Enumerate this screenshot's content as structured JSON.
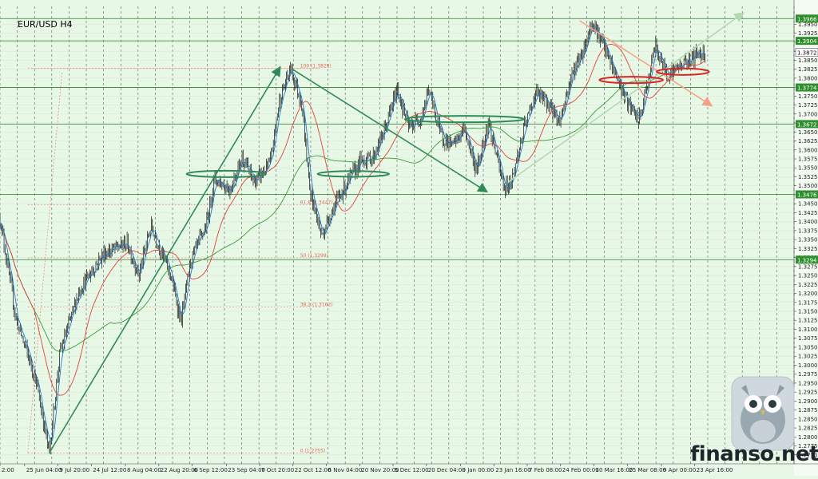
{
  "chart_data": {
    "type": "candlestick",
    "title": "EUR/USD H4",
    "symbol": "EUR/USD",
    "timeframe": "H4",
    "ylim": [
      1.2725,
      1.4
    ],
    "y_ticks": [
      "1.3950",
      "1.3925",
      "1.3900",
      "1.3875",
      "1.3850",
      "1.3825",
      "1.3800",
      "1.3775",
      "1.3750",
      "1.3725",
      "1.3700",
      "1.3675",
      "1.3650",
      "1.3625",
      "1.3600",
      "1.3575",
      "1.3550",
      "1.3525",
      "1.3500",
      "1.3475",
      "1.3450",
      "1.3425",
      "1.3400",
      "1.3375",
      "1.3350",
      "1.3325",
      "1.3300",
      "1.3275",
      "1.3250",
      "1.3225",
      "1.3200",
      "1.3175",
      "1.3150",
      "1.3125",
      "1.3100",
      "1.3075",
      "1.3050",
      "1.3025",
      "1.3000",
      "1.2975",
      "1.2950",
      "1.2925",
      "1.2900",
      "1.2875",
      "1.2850",
      "1.2825",
      "1.2800",
      "1.2775",
      "1.2750"
    ],
    "x_labels": [
      {
        "label": "2:00",
        "t": 0.0
      },
      {
        "label": "25 Jun 04:00",
        "t": 0.031
      },
      {
        "label": "9 Jul 20:00",
        "t": 0.073
      },
      {
        "label": "24 Jul 12:00",
        "t": 0.115
      },
      {
        "label": "8 Aug 04:00",
        "t": 0.158
      },
      {
        "label": "22 Aug 20:00",
        "t": 0.2
      },
      {
        "label": "6 Sep 12:00",
        "t": 0.242
      },
      {
        "label": "23 Sep 04:00",
        "t": 0.285
      },
      {
        "label": "7 Oct 20:00",
        "t": 0.327
      },
      {
        "label": "22 Oct 12:00",
        "t": 0.369
      },
      {
        "label": "6 Nov 04:00",
        "t": 0.411
      },
      {
        "label": "20 Nov 20:00",
        "t": 0.453
      },
      {
        "label": "5 Dec 12:00",
        "t": 0.495
      },
      {
        "label": "20 Dec 04:00",
        "t": 0.537
      },
      {
        "label": "9 Jan 00:00",
        "t": 0.58
      },
      {
        "label": "23 Jan 16:00",
        "t": 0.622
      },
      {
        "label": "7 Feb 08:00",
        "t": 0.664
      },
      {
        "label": "24 Feb 00:00",
        "t": 0.706
      },
      {
        "label": "10 Mar 16:00",
        "t": 0.748
      },
      {
        "label": "25 Mar 08:00",
        "t": 0.79
      },
      {
        "label": "9 Apr 00:00",
        "t": 0.833
      },
      {
        "label": "23 Apr 16:00",
        "t": 0.875
      }
    ],
    "horizontal_levels": [
      {
        "label": "1.3966",
        "value": 1.3966
      },
      {
        "label": "1.3904",
        "value": 1.3904
      },
      {
        "label": "1.3774",
        "value": 1.3774
      },
      {
        "label": "1.3672",
        "value": 1.3672
      },
      {
        "label": "1.3476",
        "value": 1.3476
      },
      {
        "label": "1.3294",
        "value": 1.3294
      }
    ],
    "current_price": {
      "label": "1.3872",
      "value": 1.3872
    },
    "fibonacci": [
      {
        "label": "100 (1.3828)",
        "value": 1.3828
      },
      {
        "label": "61.8 (1.3447)",
        "value": 1.3447
      },
      {
        "label": "50 (1.3299)",
        "value": 1.3299
      },
      {
        "label": "38.2 (1.3162)",
        "value": 1.3162
      },
      {
        "label": "0 (1.2755)",
        "value": 1.2755
      }
    ],
    "price_path": [
      [
        0.0,
        1.341
      ],
      [
        0.02,
        1.313
      ],
      [
        0.045,
        1.296
      ],
      [
        0.062,
        1.2755
      ],
      [
        0.075,
        1.303
      ],
      [
        0.1,
        1.321
      ],
      [
        0.13,
        1.331
      ],
      [
        0.16,
        1.334
      ],
      [
        0.175,
        1.325
      ],
      [
        0.19,
        1.339
      ],
      [
        0.215,
        1.325
      ],
      [
        0.228,
        1.312
      ],
      [
        0.24,
        1.329
      ],
      [
        0.26,
        1.339
      ],
      [
        0.27,
        1.352
      ],
      [
        0.29,
        1.349
      ],
      [
        0.305,
        1.358
      ],
      [
        0.32,
        1.351
      ],
      [
        0.34,
        1.356
      ],
      [
        0.352,
        1.374
      ],
      [
        0.366,
        1.3828
      ],
      [
        0.38,
        1.373
      ],
      [
        0.39,
        1.349
      ],
      [
        0.405,
        1.336
      ],
      [
        0.42,
        1.344
      ],
      [
        0.44,
        1.352
      ],
      [
        0.455,
        1.357
      ],
      [
        0.47,
        1.358
      ],
      [
        0.485,
        1.366
      ],
      [
        0.5,
        1.377
      ],
      [
        0.515,
        1.366
      ],
      [
        0.53,
        1.369
      ],
      [
        0.54,
        1.377
      ],
      [
        0.555,
        1.364
      ],
      [
        0.57,
        1.361
      ],
      [
        0.585,
        1.366
      ],
      [
        0.6,
        1.354
      ],
      [
        0.615,
        1.368
      ],
      [
        0.635,
        1.349
      ],
      [
        0.645,
        1.352
      ],
      [
        0.66,
        1.366
      ],
      [
        0.675,
        1.376
      ],
      [
        0.69,
        1.373
      ],
      [
        0.705,
        1.368
      ],
      [
        0.72,
        1.381
      ],
      [
        0.735,
        1.388
      ],
      [
        0.746,
        1.396
      ],
      [
        0.76,
        1.389
      ],
      [
        0.775,
        1.381
      ],
      [
        0.79,
        1.373
      ],
      [
        0.805,
        1.368
      ],
      [
        0.815,
        1.378
      ],
      [
        0.825,
        1.389
      ],
      [
        0.84,
        1.381
      ],
      [
        0.86,
        1.384
      ],
      [
        0.88,
        1.387
      ],
      [
        0.888,
        1.3872
      ]
    ],
    "trend_lines": [
      {
        "from": [
          0.062,
          1.2755
        ],
        "to": [
          0.352,
          1.3828
        ],
        "color": "#2e8b57",
        "arrow": true
      },
      {
        "from": [
          0.366,
          1.3828
        ],
        "to": [
          0.612,
          1.3485
        ],
        "color": "#2e8b57",
        "arrow": true
      },
      {
        "from": [
          0.73,
          1.396
        ],
        "to": [
          0.895,
          1.3725
        ],
        "color": "#f4a38a",
        "arrow": true
      },
      {
        "from": [
          0.64,
          1.351
        ],
        "to": [
          0.935,
          1.398
        ],
        "color": "#b4d8b4",
        "arrow": true
      },
      {
        "from": [
          0.078,
          1.3815
        ],
        "to": [
          0.035,
          1.2755
        ],
        "color": "#f08070",
        "dashed": true
      },
      {
        "from": [
          0.04,
          1.3828
        ],
        "to": [
          0.4,
          1.3828
        ],
        "color": "#f08070",
        "dashed": true
      }
    ],
    "ellipses": [
      {
        "t": 0.285,
        "v": 1.3533,
        "rw": 0.05,
        "rv": 0.0009,
        "color": "#2e8b57"
      },
      {
        "t": 0.445,
        "v": 1.3533,
        "rw": 0.045,
        "rv": 0.0008,
        "color": "#2e8b57"
      },
      {
        "t": 0.585,
        "v": 1.3686,
        "rw": 0.075,
        "rv": 0.0009,
        "color": "#2e8b57"
      },
      {
        "t": 0.795,
        "v": 1.3795,
        "rw": 0.04,
        "rv": 0.0009,
        "color": "#dd2222"
      },
      {
        "t": 0.86,
        "v": 1.3818,
        "rw": 0.033,
        "rv": 0.0009,
        "color": "#dd2222"
      }
    ],
    "grid": true,
    "watermark": "finanso.net"
  }
}
